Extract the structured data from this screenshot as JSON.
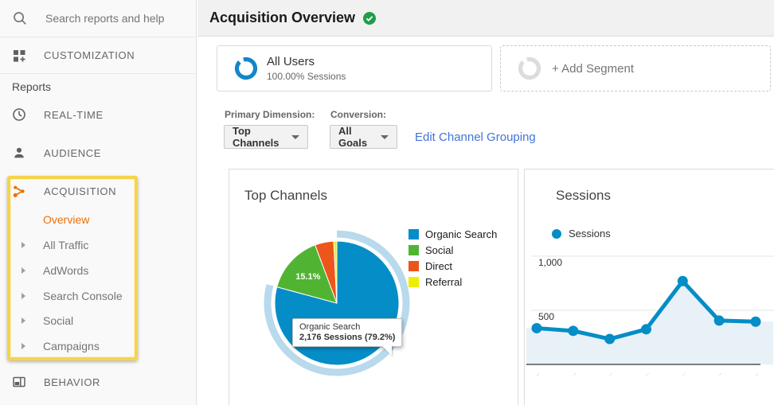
{
  "colors": {
    "pie": [
      "#058dc7",
      "#50b432",
      "#ed561b",
      "#edef00"
    ],
    "line": "#058dc7",
    "area_fill": "#e8f1f8",
    "highlight_ring": "#b9d9ec",
    "active_orange": "#e8710a",
    "link_blue": "#4274d8",
    "badge_green": "#1e9e4a",
    "annotation_yellow": "#f6d34c",
    "segment_ring_blue": "#1386c9",
    "segment_ring_gray": "#dcdcdc"
  },
  "sidebar": {
    "search_placeholder": "Search reports and help",
    "customization_label": "CUSTOMIZATION",
    "reports_label": "Reports",
    "nav": [
      {
        "label": "REAL-TIME"
      },
      {
        "label": "AUDIENCE"
      },
      {
        "label": "ACQUISITION"
      },
      {
        "label": "BEHAVIOR"
      }
    ],
    "acquisition_subitems": [
      {
        "label": "Overview",
        "active": true,
        "arrow": false
      },
      {
        "label": "All Traffic",
        "active": false,
        "arrow": true
      },
      {
        "label": "AdWords",
        "active": false,
        "arrow": true
      },
      {
        "label": "Search Console",
        "active": false,
        "arrow": true
      },
      {
        "label": "Social",
        "active": false,
        "arrow": true
      },
      {
        "label": "Campaigns",
        "active": false,
        "arrow": true
      }
    ]
  },
  "header": {
    "title": "Acquisition Overview"
  },
  "segments": {
    "all_users_title": "All Users",
    "all_users_subtitle": "100.00% Sessions",
    "add_segment_label": "+ Add Segment"
  },
  "controls": {
    "primary_dimension_label": "Primary Dimension:",
    "primary_dimension_value": "Top Channels",
    "conversion_label": "Conversion:",
    "conversion_value": "All Goals",
    "edit_link_label": "Edit Channel Grouping"
  },
  "chart_data": [
    {
      "type": "pie",
      "title": "Top Channels",
      "labels": [
        "Organic Search",
        "Social",
        "Direct",
        "Referral"
      ],
      "values": [
        79.2,
        15.1,
        4.9,
        0.8
      ],
      "unit": "percent of sessions",
      "colors": [
        "#058dc7",
        "#50b432",
        "#ed561b",
        "#edef00"
      ],
      "highlighted_slice": 0,
      "inside_label": {
        "slice": 1,
        "text": "15.1%"
      },
      "tooltip": {
        "line1": "Organic Search",
        "line2": "2,176 Sessions (79.2%)"
      },
      "legend_position": "right"
    },
    {
      "type": "line",
      "title": "Sessions",
      "series": [
        {
          "name": "Sessions",
          "values": [
            335,
            310,
            235,
            325,
            770,
            405,
            395
          ]
        }
      ],
      "x_count": 7,
      "xtick_labels": [
        "...",
        "...",
        "...",
        "...",
        "...",
        "...",
        "..."
      ],
      "xtick_labels_illegible": true,
      "ylim": [
        0,
        1000
      ],
      "yticks": [
        500,
        1000
      ],
      "ytick_labels": [
        "500",
        "1,000"
      ],
      "grid": true,
      "area_fill": true,
      "legend_position": "top-left"
    }
  ]
}
